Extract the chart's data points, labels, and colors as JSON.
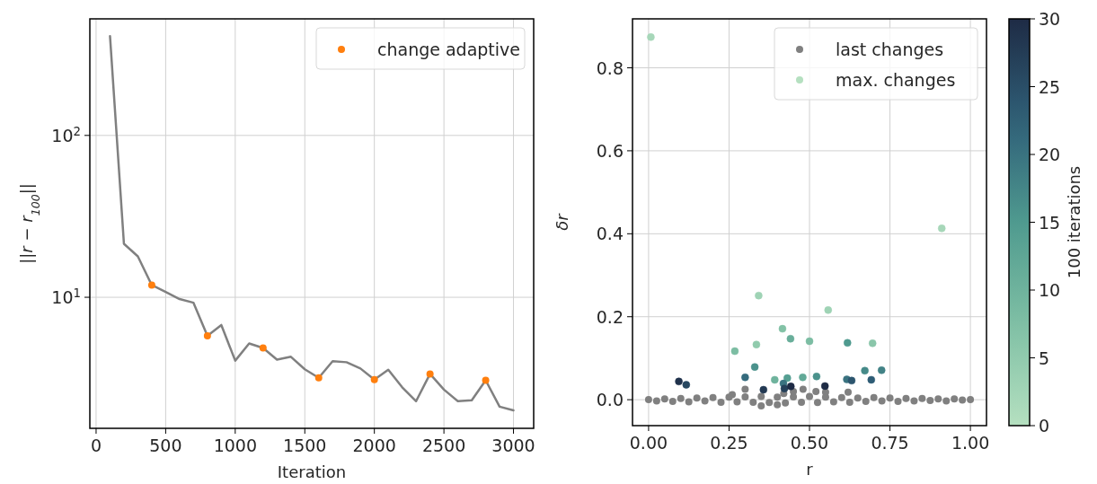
{
  "chart_data": [
    {
      "type": "line",
      "xlabel": "Iteration",
      "ylabel": "||r − r$_{100}$||",
      "log": "y",
      "xlim": [
        -45,
        3145
      ],
      "ylim": [
        1.55,
        525
      ],
      "xticks": [
        0,
        500,
        1000,
        1500,
        2000,
        2500,
        3000
      ],
      "yticks": [
        {
          "value": 10,
          "label": "10$^{1}$"
        },
        {
          "value": 100,
          "label": "10$^{2}$"
        }
      ],
      "grid": true,
      "legend": "top right",
      "series": [
        {
          "color": "#808080",
          "x": [
            100,
            200,
            300,
            400,
            500,
            600,
            700,
            800,
            900,
            1000,
            1100,
            1200,
            1300,
            1400,
            1500,
            1600,
            1700,
            1800,
            1900,
            2000,
            2100,
            2200,
            2300,
            2400,
            2500,
            2600,
            2700,
            2800,
            2900,
            3000
          ],
          "values": [
            410,
            21.4,
            17.9,
            11.9,
            10.8,
            9.75,
            9.25,
            5.77,
            6.74,
            4.06,
            5.18,
            4.86,
            4.12,
            4.29,
            3.59,
            3.18,
            4.03,
            3.97,
            3.63,
            3.1,
            3.57,
            2.78,
            2.28,
            3.36,
            2.69,
            2.28,
            2.31,
            3.07,
            2.11,
            2.0
          ]
        },
        {
          "type": "scatter",
          "name": "change adaptive",
          "color": "#ff7f0e",
          "x": [
            400,
            800,
            1200,
            1600,
            2000,
            2400,
            2800
          ],
          "values": [
            11.9,
            5.77,
            4.86,
            3.18,
            3.1,
            3.36,
            3.07
          ]
        }
      ]
    },
    {
      "type": "scatter",
      "xlabel": "r",
      "ylabel": "δr",
      "clabel": "100 iterations",
      "xlim": [
        -0.05,
        1.05
      ],
      "ylim": [
        -0.0625,
        0.918
      ],
      "xticks": [
        {
          "value": 0,
          "label": "0.00"
        },
        {
          "value": 0.25,
          "label": "0.25"
        },
        {
          "value": 0.5,
          "label": "0.50"
        },
        {
          "value": 0.75,
          "label": "0.75"
        },
        {
          "value": 1,
          "label": "1.00"
        }
      ],
      "yticks": [
        {
          "value": 0,
          "label": "0.0"
        },
        0.2,
        0.4,
        0.6,
        0.8
      ],
      "clim": [
        0,
        30
      ],
      "cticks": [
        0,
        5,
        10,
        15,
        20,
        25,
        30
      ],
      "grid": true,
      "legend": "top right",
      "series": [
        {
          "name": "last changes",
          "color": "#808080",
          "x": [
            0,
            0.025,
            0.05,
            0.075,
            0.1,
            0.125,
            0.15,
            0.175,
            0.2,
            0.225,
            0.25,
            0.275,
            0.3,
            0.325,
            0.35,
            0.375,
            0.4,
            0.425,
            0.45,
            0.475,
            0.5,
            0.525,
            0.55,
            0.575,
            0.6,
            0.625,
            0.65,
            0.675,
            0.7,
            0.725,
            0.75,
            0.775,
            0.8,
            0.825,
            0.85,
            0.875,
            0.9,
            0.925,
            0.95,
            0.975,
            1.0,
            0.3,
            0.35,
            0.42,
            0.45,
            0.48,
            0.52,
            0.55,
            0.62,
            0.26,
            0.4
          ],
          "values": [
            0,
            -0.003,
            0.002,
            -0.004,
            0.003,
            -0.005,
            0.004,
            -0.003,
            0.005,
            -0.006,
            0.006,
            -0.005,
            0.007,
            -0.006,
            0.008,
            -0.007,
            0.006,
            -0.008,
            0.007,
            -0.006,
            0.008,
            -0.007,
            0.006,
            -0.005,
            0.005,
            -0.006,
            0.004,
            -0.004,
            0.005,
            -0.003,
            0.004,
            -0.004,
            0.003,
            -0.003,
            0.003,
            -0.002,
            0.002,
            -0.003,
            0.002,
            -0.001,
            0,
            0.025,
            -0.015,
            0.015,
            0.02,
            0.025,
            0.02,
            0.018,
            0.018,
            0.012,
            -0.012
          ]
        },
        {
          "name": "max. changes",
          "x": [
            0.007,
            0.911,
            0.342,
            0.558,
            0.268,
            0.335,
            0.416,
            0.441,
            0.5,
            0.618,
            0.696,
            0.33,
            0.3,
            0.392,
            0.431,
            0.479,
            0.522,
            0.419,
            0.422,
            0.442,
            0.357,
            0.548,
            0.616,
            0.631,
            0.672,
            0.724,
            0.692,
            0.094,
            0.117
          ],
          "values": [
            0.874,
            0.413,
            0.251,
            0.216,
            0.117,
            0.133,
            0.171,
            0.147,
            0.141,
            0.137,
            0.136,
            0.079,
            0.054,
            0.048,
            0.052,
            0.054,
            0.056,
            0.039,
            0.027,
            0.032,
            0.024,
            0.033,
            0.049,
            0.046,
            0.07,
            0.071,
            0.048,
            0.044,
            0.036
          ],
          "colors": [
            "#a7d7b9",
            "#a7d7b9",
            "#9fd3b5",
            "#9fd3b5",
            "#7cbda3",
            "#91cbad",
            "#83c2a6",
            "#69ae9a",
            "#7cbda3",
            "#4f9a8f",
            "#8ac6aa",
            "#4b928c",
            "#356b7d",
            "#6fb39d",
            "#559f92",
            "#62a997",
            "#4b928c",
            "#3a7380",
            "#254059",
            "#1e2b45",
            "#233953",
            "#1e2b45",
            "#3a7380",
            "#2c556e",
            "#468a89",
            "#428286",
            "#2e5c75",
            "#20324c",
            "#274760"
          ],
          "cvalues": [
            2,
            2,
            3,
            3,
            8,
            5,
            7,
            11,
            8,
            15,
            6,
            16,
            21,
            10,
            14,
            12,
            16,
            20,
            27,
            30,
            28,
            30,
            20,
            24,
            17,
            18,
            23,
            29,
            26
          ]
        }
      ]
    }
  ]
}
